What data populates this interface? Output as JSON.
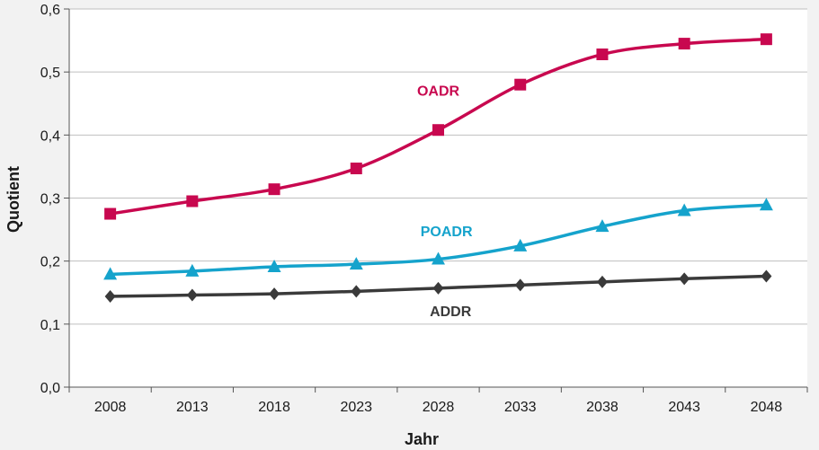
{
  "chart_data": {
    "type": "line",
    "title": "",
    "xlabel": "Jahr",
    "ylabel": "Quotient",
    "categories": [
      "2008",
      "2013",
      "2018",
      "2023",
      "2028",
      "2033",
      "2038",
      "2043",
      "2048"
    ],
    "ylim": [
      0,
      0.6
    ],
    "yticks": [
      "0,0",
      "0,1",
      "0,2",
      "0,3",
      "0,4",
      "0,5",
      "0,6"
    ],
    "grid": true,
    "series": [
      {
        "name": "OADR",
        "color": "#c8084f",
        "marker": "square",
        "values": [
          0.275,
          0.295,
          0.314,
          0.347,
          0.408,
          0.48,
          0.528,
          0.545,
          0.552
        ]
      },
      {
        "name": "POADR",
        "color": "#15a3cc",
        "marker": "triangle",
        "values": [
          0.179,
          0.184,
          0.191,
          0.195,
          0.203,
          0.224,
          0.255,
          0.28,
          0.289
        ]
      },
      {
        "name": "ADDR",
        "color": "#3a3a3a",
        "marker": "diamond",
        "values": [
          0.144,
          0.146,
          0.148,
          0.152,
          0.157,
          0.162,
          0.167,
          0.172,
          0.176
        ]
      }
    ]
  }
}
